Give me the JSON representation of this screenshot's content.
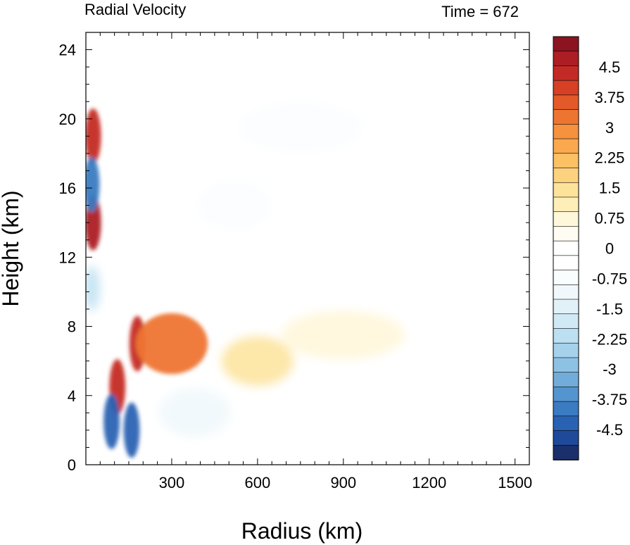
{
  "chart_data": {
    "type": "heatmap",
    "title": "Radial Velocity",
    "time_label": "Time = 672",
    "xlabel": "Radius (km)",
    "ylabel": "Height (km)",
    "xlim": [
      0,
      1550
    ],
    "ylim": [
      0,
      25
    ],
    "x_ticks": [
      300,
      600,
      900,
      1200,
      1500
    ],
    "y_ticks": [
      0,
      4,
      8,
      12,
      16,
      20,
      24
    ],
    "colorbar": {
      "min": -5.25,
      "max": 5.25,
      "step": 0.375,
      "labels": [
        "4.5",
        "3.75",
        "3",
        "2.25",
        "1.5",
        "0.75",
        "0",
        "-0.75",
        "-1.5",
        "-2.25",
        "-3",
        "-3.75",
        "-4.5"
      ],
      "label_values": [
        4.5,
        3.75,
        3,
        2.25,
        1.5,
        0.75,
        0,
        -0.75,
        -1.5,
        -2.25,
        -3,
        -3.75,
        -4.5
      ],
      "colors": [
        "#1b2f6b",
        "#1f4a99",
        "#2a62b3",
        "#3a7bc2",
        "#5494cf",
        "#72acd9",
        "#8ec2e4",
        "#a6d1eb",
        "#bcdff1",
        "#d0e9f5",
        "#e2f1f8",
        "#f0f8fb",
        "#fafdfe",
        "#ffffff",
        "#ffffff",
        "#fffdf2",
        "#fff7d9",
        "#feeeb8",
        "#fde39a",
        "#fdd27e",
        "#fcc065",
        "#faa94e",
        "#f6913e",
        "#ee7531",
        "#e35a28",
        "#d64024",
        "#c42a25",
        "#ac1d24",
        "#8c1420"
      ]
    },
    "features": [
      {
        "r": 25,
        "z": 19.0,
        "v": 4.5
      },
      {
        "r": 25,
        "z": 14.0,
        "v": 5.0
      },
      {
        "r": 20,
        "z": 16.2,
        "v": -4.0
      },
      {
        "r": 20,
        "z": 10.2,
        "v": -2.2
      },
      {
        "r": 110,
        "z": 4.5,
        "v": 4.5
      },
      {
        "r": 90,
        "z": 2.5,
        "v": -4.2
      },
      {
        "r": 160,
        "z": 2.0,
        "v": -4.5
      },
      {
        "r": 180,
        "z": 7.0,
        "v": 4.5
      },
      {
        "r": 300,
        "z": 7.0,
        "v": 3.5
      },
      {
        "r": 600,
        "z": 6.0,
        "v": 1.5
      },
      {
        "r": 900,
        "z": 7.5,
        "v": 0.9
      },
      {
        "r": 380,
        "z": 3.0,
        "v": -0.8
      },
      {
        "r": 520,
        "z": 15.0,
        "v": -0.7
      },
      {
        "r": 750,
        "z": 19.5,
        "v": -0.5
      }
    ]
  }
}
